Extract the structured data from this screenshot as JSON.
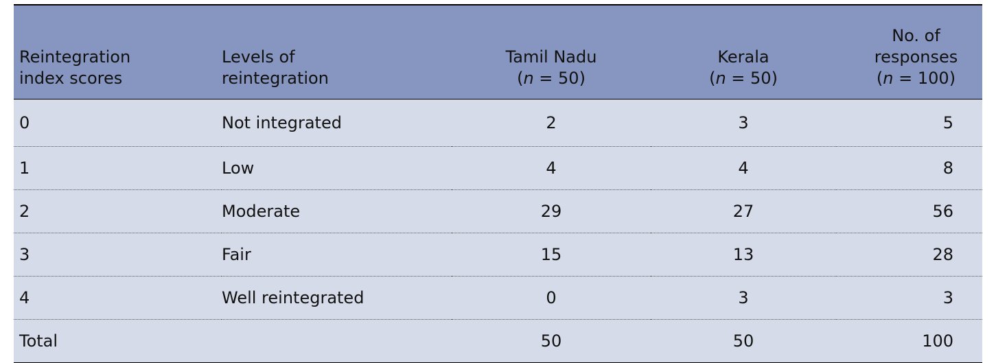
{
  "table": {
    "header": [
      {
        "lines": [
          "Reintegration",
          "index scores"
        ]
      },
      {
        "lines": [
          "Levels of",
          "reintegration"
        ]
      },
      {
        "lines": [
          "Tamil Nadu"
        ],
        "sample": {
          "open": "(",
          "symbol": "n",
          "rest": " = 50)"
        }
      },
      {
        "lines": [
          "Kerala"
        ],
        "sample": {
          "open": "(",
          "symbol": "n",
          "rest": " = 50)"
        }
      },
      {
        "lines": [
          "No. of",
          "responses"
        ],
        "sample": {
          "open": "(",
          "symbol": "n",
          "rest": " = 100)"
        }
      }
    ],
    "rows": [
      [
        "0",
        "Not integrated",
        2,
        3,
        5
      ],
      [
        "1",
        "Low",
        4,
        4,
        8
      ],
      [
        "2",
        "Moderate",
        29,
        27,
        56
      ],
      [
        "3",
        "Fair",
        15,
        13,
        28
      ],
      [
        "4",
        "Well reintegrated",
        0,
        3,
        3
      ]
    ],
    "total": [
      "Total",
      50,
      50,
      100
    ]
  }
}
